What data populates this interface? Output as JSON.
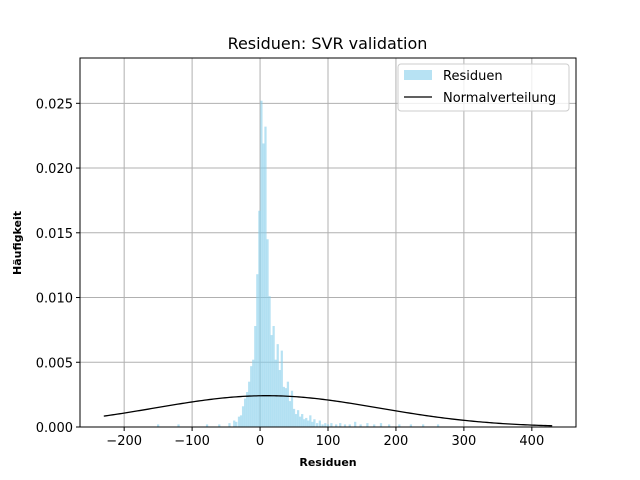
{
  "chart_data": {
    "type": "histogram",
    "title": "Residuen: SVR validation",
    "xlabel": "Residuen",
    "ylabel": "Häufigkeit",
    "xlim": [
      -265,
      465
    ],
    "ylim": [
      0,
      0.0285
    ],
    "grid": true,
    "legend_position": "top-right",
    "xticks": [
      -200,
      -100,
      0,
      100,
      200,
      300,
      400
    ],
    "xtick_labels": [
      "−200",
      "−100",
      "0",
      "100",
      "200",
      "300",
      "400"
    ],
    "yticks": [
      0.0,
      0.005,
      0.01,
      0.015,
      0.02,
      0.025
    ],
    "ytick_labels": [
      "0.000",
      "0.005",
      "0.010",
      "0.015",
      "0.020",
      "0.025"
    ],
    "series": [
      {
        "name": "Residuen",
        "kind": "histogram",
        "color": "#87ceeb",
        "bin_width": 3.3,
        "bars": [
          [
            -150,
            0.0002
          ],
          [
            -120,
            0.0002
          ],
          [
            -78,
            0.0002
          ],
          [
            -60,
            0.0002
          ],
          [
            -45,
            0.0003
          ],
          [
            -38,
            0.0005
          ],
          [
            -35,
            0.0004
          ],
          [
            -31,
            0.0008
          ],
          [
            -28,
            0.0009
          ],
          [
            -25,
            0.0016
          ],
          [
            -22,
            0.0022
          ],
          [
            -19,
            0.0027
          ],
          [
            -16,
            0.0035
          ],
          [
            -13,
            0.0047
          ],
          [
            -10,
            0.0052
          ],
          [
            -7,
            0.0078
          ],
          [
            -4,
            0.0118
          ],
          [
            -1,
            0.0167
          ],
          [
            2,
            0.0252
          ],
          [
            5,
            0.0219
          ],
          [
            8,
            0.0232
          ],
          [
            11,
            0.0145
          ],
          [
            14,
            0.0101
          ],
          [
            17,
            0.0071
          ],
          [
            20,
            0.0078
          ],
          [
            23,
            0.0052
          ],
          [
            26,
            0.0064
          ],
          [
            29,
            0.0044
          ],
          [
            32,
            0.0059
          ],
          [
            35,
            0.0031
          ],
          [
            38,
            0.003
          ],
          [
            41,
            0.0035
          ],
          [
            44,
            0.002
          ],
          [
            47,
            0.0028
          ],
          [
            50,
            0.0014
          ],
          [
            53,
            0.001
          ],
          [
            56,
            0.0013
          ],
          [
            59,
            0.0008
          ],
          [
            62,
            0.001
          ],
          [
            65,
            0.0006
          ],
          [
            68,
            0.0007
          ],
          [
            71,
            0.0005
          ],
          [
            74,
            0.0009
          ],
          [
            77,
            0.0004
          ],
          [
            80,
            0.0006
          ],
          [
            84,
            0.0003
          ],
          [
            88,
            0.0005
          ],
          [
            92,
            0.0002
          ],
          [
            96,
            0.0003
          ],
          [
            100,
            0.0002
          ],
          [
            105,
            0.0003
          ],
          [
            112,
            0.0002
          ],
          [
            118,
            0.0003
          ],
          [
            125,
            0.0002
          ],
          [
            132,
            0.0002
          ],
          [
            140,
            0.0004
          ],
          [
            148,
            0.0002
          ],
          [
            158,
            0.0003
          ],
          [
            168,
            0.0002
          ],
          [
            178,
            0.0003
          ],
          [
            190,
            0.0002
          ],
          [
            205,
            0.0002
          ],
          [
            222,
            0.0002
          ],
          [
            240,
            0.0002
          ],
          [
            262,
            0.0002
          ]
        ]
      },
      {
        "name": "Normalverteilung",
        "kind": "line",
        "color": "#000000",
        "mu": 10.0,
        "sigma": 165.0,
        "x_range": [
          -230,
          430
        ]
      }
    ]
  }
}
